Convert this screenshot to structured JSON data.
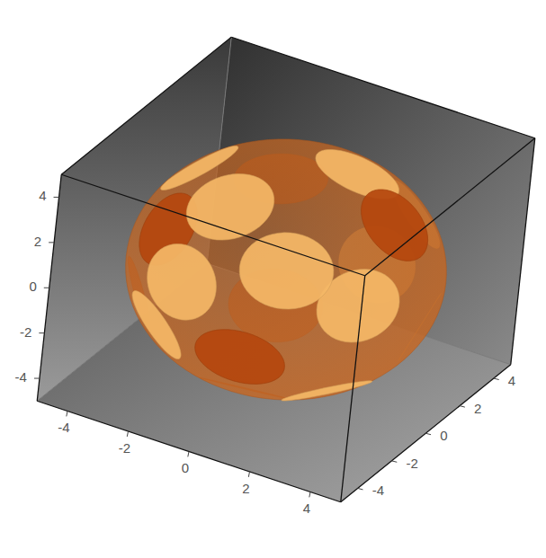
{
  "chart_data": {
    "type": "volume3d",
    "xlim": [
      -5,
      5
    ],
    "ylim": [
      -5,
      5
    ],
    "zlim": [
      -5,
      5
    ],
    "xticks": [
      -4,
      -2,
      0,
      2,
      4
    ],
    "yticks": [
      -4,
      -2,
      0,
      2,
      4
    ],
    "zticks": [
      -4,
      -2,
      0,
      2,
      4
    ],
    "sphere": {
      "center": [
        0,
        0,
        0
      ],
      "radius": 4.6,
      "color": "#c9661f"
    },
    "patch_radius": 1.35,
    "patches": {
      "x": [
        1.6,
        -1.3,
        3.5,
        0.9,
        -2.6,
        2.6,
        -0.9,
        3.1,
        -3.5,
        4.0,
        0.4,
        -2.2,
        1.3,
        -3.1,
        -2.2,
        0.9,
        -1.3,
        2.2
      ],
      "y": [
        -3.2,
        -4.0,
        -2.2,
        -4.2,
        -2.6,
        -1.8,
        -2.2,
        0.4,
        -2.2,
        0.9,
        -2.6,
        -3.5,
        1.3,
        0.0,
        3.5,
        4.0,
        2.2,
        3.5
      ],
      "z": [
        2.6,
        1.3,
        1.3,
        -0.9,
        2.2,
        -3.1,
        3.7,
        3.1,
        -1.3,
        -1.3,
        -3.5,
        -1.3,
        4.0,
        3.1,
        0.9,
        -1.8,
        -3.5,
        1.3
      ],
      "colors": [
        "#f4b766",
        "#f4b766",
        "#f4b766",
        "#b5470e",
        "#b5470e",
        "#f4b766",
        "#f4b766",
        "#b5470e",
        "#b5470e",
        "#f4b766",
        "#b5470e",
        "#f4b766",
        "#f4b766",
        "#f4b766",
        "#b5470e",
        "#f4b766",
        "#b5470e",
        "#f4b766"
      ]
    }
  }
}
